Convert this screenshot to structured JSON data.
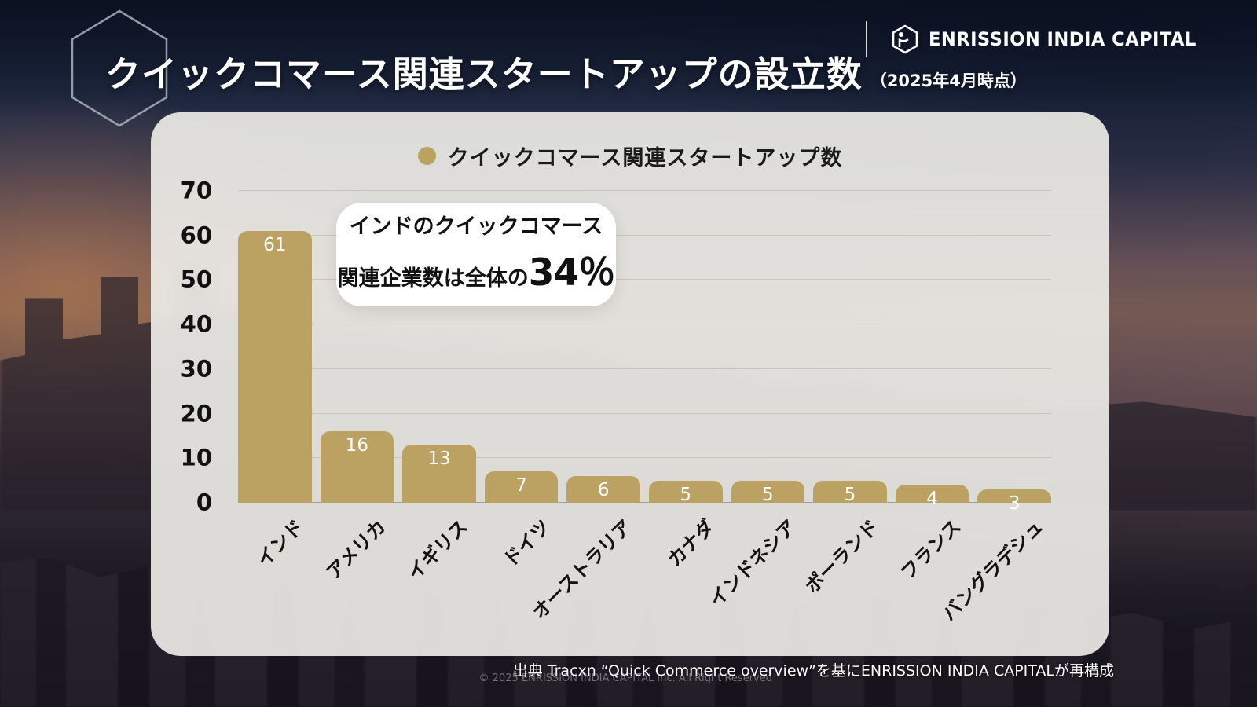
{
  "header": {
    "title": "クイックコマース関連スタートアップの設立数",
    "subtitle": "（2025年4月時点）",
    "brand": "ENRISSION INDIA CAPITAL"
  },
  "chart_data": {
    "type": "bar",
    "legend": "クイックコマース関連スタートアップ数",
    "legend_position": "top-center",
    "categories": [
      "インド",
      "アメリカ",
      "イギリス",
      "ドイツ",
      "オーストラリア",
      "カナダ",
      "インドネシア",
      "ポーランド",
      "フランス",
      "バングラデシュ"
    ],
    "values": [
      61,
      16,
      13,
      7,
      6,
      5,
      5,
      5,
      4,
      3
    ],
    "ylim": [
      0,
      70
    ],
    "ytick_step": 10,
    "grid": true,
    "xlabel": "",
    "ylabel": "",
    "bar_color": "#bba263",
    "value_label_color": "#ffffff"
  },
  "callout": {
    "line1": "インドのクイックコマース",
    "line2_prefix": "関連企業数は全体の",
    "line2_value": "34％"
  },
  "footer": {
    "source": "出典 Tracxn “Quick Commerce overview”を基にENRISSION INDIA CAPITALが再構成",
    "copyright": "© 2025 ENRISSION INDIA CAPITAL Inc. All Right Reserved"
  },
  "colors": {
    "accent_gold": "#bba263",
    "panel": "#edebe7",
    "gridline": "#c7c4be",
    "title_text": "#ffffff"
  }
}
